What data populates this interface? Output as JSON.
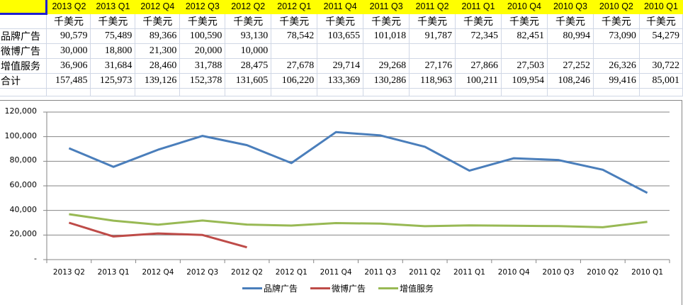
{
  "table": {
    "columns": [
      "2013 Q2",
      "2013 Q1",
      "2012 Q4",
      "2012 Q3",
      "2012 Q2",
      "2012 Q1",
      "2011 Q4",
      "2011 Q3",
      "2011 Q2",
      "2011 Q1",
      "2010 Q4",
      "2010 Q3",
      "2010 Q2",
      "2010 Q1"
    ],
    "unit": "千美元",
    "rows": [
      {
        "label": "品牌广告",
        "values": [
          "90,579",
          "75,489",
          "89,366",
          "100,590",
          "93,130",
          "78,542",
          "103,655",
          "101,018",
          "91,787",
          "72,345",
          "82,451",
          "80,994",
          "73,090",
          "54,279"
        ]
      },
      {
        "label": "微博广告",
        "values": [
          "30,000",
          "18,800",
          "21,300",
          "20,000",
          "10,000",
          "",
          "",
          "",
          "",
          "",
          "",
          "",
          "",
          ""
        ]
      },
      {
        "label": "增值服务",
        "values": [
          "36,906",
          "31,684",
          "28,460",
          "31,788",
          "28,475",
          "27,678",
          "29,714",
          "29,268",
          "27,176",
          "27,866",
          "27,503",
          "27,252",
          "26,326",
          "30,722"
        ]
      },
      {
        "label": "合计",
        "values": [
          "157,485",
          "125,973",
          "139,126",
          "152,378",
          "131,605",
          "106,220",
          "133,369",
          "130,286",
          "118,963",
          "100,211",
          "109,954",
          "108,246",
          "99,416",
          "85,001"
        ]
      }
    ]
  },
  "chart_data": {
    "type": "line",
    "title": "",
    "xlabel": "",
    "ylabel": "",
    "categories": [
      "2013 Q2",
      "2013 Q1",
      "2012 Q4",
      "2012 Q3",
      "2012 Q2",
      "2012 Q1",
      "2011 Q4",
      "2011 Q3",
      "2011 Q2",
      "2011 Q1",
      "2010 Q4",
      "2010 Q3",
      "2010 Q2",
      "2010 Q1"
    ],
    "series": [
      {
        "name": "品牌广告",
        "color": "#4a7ebb",
        "values": [
          90579,
          75489,
          89366,
          100590,
          93130,
          78542,
          103655,
          101018,
          91787,
          72345,
          82451,
          80994,
          73090,
          54279
        ]
      },
      {
        "name": "微博广告",
        "color": "#be4b48",
        "values": [
          30000,
          18800,
          21300,
          20000,
          10000,
          null,
          null,
          null,
          null,
          null,
          null,
          null,
          null,
          null
        ]
      },
      {
        "name": "增值服务",
        "color": "#98b954",
        "values": [
          36906,
          31684,
          28460,
          31788,
          28475,
          27678,
          29714,
          29268,
          27176,
          27866,
          27503,
          27252,
          26326,
          30722
        ]
      }
    ],
    "ylim": [
      0,
      120000
    ],
    "yticks": [
      "120,000",
      "100,000",
      "80,000",
      "60,000",
      "40,000",
      "20,000",
      "-"
    ],
    "ytick_values": [
      120000,
      100000,
      80000,
      60000,
      40000,
      20000,
      0
    ],
    "grid": true,
    "legend_position": "bottom"
  }
}
